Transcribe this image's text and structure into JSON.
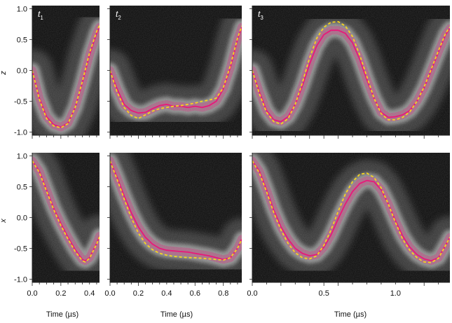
{
  "figure": {
    "xlabel": "Time (µs)",
    "row_labels": [
      "z",
      "x"
    ]
  },
  "chart_data": [
    {
      "id": "z-t1",
      "type": "line",
      "panel_label": "t",
      "panel_sub": "1",
      "ylabel": "z",
      "xlim": [
        0,
        0.47
      ],
      "ylim": [
        -1.05,
        1.05
      ],
      "yticks": [
        "1.0",
        "0.5",
        "0.0",
        "-0.5",
        "-1.0"
      ],
      "ytick_values": [
        1.0,
        0.5,
        0.0,
        -0.5,
        -1.0
      ],
      "xticks": [],
      "xtick_values": [],
      "series": [
        {
          "name": "",
          "role": "measured",
          "color": "#e8197a",
          "x": [
            0,
            0.05,
            0.1,
            0.15,
            0.2,
            0.25,
            0.3,
            0.35,
            0.4,
            0.45,
            0.47
          ],
          "y": [
            0.0,
            -0.45,
            -0.75,
            -0.88,
            -0.92,
            -0.85,
            -0.6,
            -0.2,
            0.25,
            0.6,
            0.7
          ]
        },
        {
          "name": "",
          "role": "predicted",
          "color": "#f5d51f",
          "x": [
            0,
            0.05,
            0.1,
            0.15,
            0.2,
            0.25,
            0.3,
            0.35,
            0.4,
            0.45,
            0.47
          ],
          "y": [
            0.0,
            -0.47,
            -0.78,
            -0.9,
            -0.93,
            -0.86,
            -0.6,
            -0.18,
            0.28,
            0.63,
            0.73
          ]
        }
      ]
    },
    {
      "id": "z-t2",
      "type": "line",
      "panel_label": "t",
      "panel_sub": "2",
      "ylabel": "",
      "xlim": [
        0,
        0.93
      ],
      "ylim": [
        -1.05,
        1.05
      ],
      "yticks": [],
      "ytick_values": [],
      "xticks": [],
      "xtick_values": [],
      "series": [
        {
          "name": "",
          "role": "measured",
          "color": "#e8197a",
          "x": [
            0,
            0.05,
            0.1,
            0.15,
            0.2,
            0.25,
            0.3,
            0.35,
            0.4,
            0.45,
            0.5,
            0.55,
            0.6,
            0.65,
            0.7,
            0.75,
            0.8,
            0.85,
            0.9,
            0.93
          ],
          "y": [
            0.0,
            -0.3,
            -0.55,
            -0.65,
            -0.69,
            -0.68,
            -0.62,
            -0.57,
            -0.55,
            -0.58,
            -0.58,
            -0.6,
            -0.58,
            -0.6,
            -0.57,
            -0.5,
            -0.3,
            0.05,
            0.5,
            0.7
          ]
        },
        {
          "name": "",
          "role": "predicted",
          "color": "#f5d51f",
          "x": [
            0,
            0.05,
            0.1,
            0.15,
            0.2,
            0.25,
            0.3,
            0.35,
            0.4,
            0.45,
            0.5,
            0.55,
            0.6,
            0.65,
            0.7,
            0.75,
            0.8,
            0.85,
            0.9,
            0.93
          ],
          "y": [
            0.0,
            -0.35,
            -0.6,
            -0.73,
            -0.78,
            -0.72,
            -0.66,
            -0.62,
            -0.6,
            -0.58,
            -0.57,
            -0.55,
            -0.53,
            -0.5,
            -0.48,
            -0.45,
            -0.28,
            0.08,
            0.52,
            0.72
          ]
        }
      ]
    },
    {
      "id": "z-t3",
      "type": "line",
      "panel_label": "t",
      "panel_sub": "3",
      "ylabel": "",
      "xlim": [
        0,
        1.38
      ],
      "ylim": [
        -1.05,
        1.05
      ],
      "yticks": [],
      "ytick_values": [],
      "xticks": [],
      "xtick_values": [],
      "series": [
        {
          "name": "",
          "role": "measured",
          "color": "#e8197a",
          "x": [
            0,
            0.05,
            0.1,
            0.15,
            0.2,
            0.25,
            0.3,
            0.35,
            0.4,
            0.45,
            0.5,
            0.55,
            0.6,
            0.65,
            0.7,
            0.75,
            0.8,
            0.85,
            0.9,
            0.95,
            1.0,
            1.05,
            1.1,
            1.15,
            1.2,
            1.25,
            1.3,
            1.35,
            1.38
          ],
          "y": [
            0.0,
            -0.35,
            -0.65,
            -0.8,
            -0.83,
            -0.75,
            -0.55,
            -0.25,
            0.1,
            0.4,
            0.58,
            0.65,
            0.65,
            0.6,
            0.45,
            0.18,
            -0.15,
            -0.45,
            -0.68,
            -0.76,
            -0.75,
            -0.72,
            -0.65,
            -0.5,
            -0.28,
            0.0,
            0.3,
            0.58,
            0.68
          ]
        },
        {
          "name": "",
          "role": "predicted",
          "color": "#f5d51f",
          "x": [
            0,
            0.05,
            0.1,
            0.15,
            0.2,
            0.25,
            0.3,
            0.35,
            0.4,
            0.45,
            0.5,
            0.55,
            0.6,
            0.65,
            0.7,
            0.75,
            0.8,
            0.85,
            0.9,
            0.95,
            1.0,
            1.05,
            1.1,
            1.15,
            1.2,
            1.25,
            1.3,
            1.35,
            1.38
          ],
          "y": [
            0.0,
            -0.38,
            -0.68,
            -0.83,
            -0.87,
            -0.78,
            -0.55,
            -0.2,
            0.2,
            0.52,
            0.7,
            0.78,
            0.79,
            0.72,
            0.55,
            0.25,
            -0.1,
            -0.45,
            -0.7,
            -0.8,
            -0.8,
            -0.76,
            -0.67,
            -0.5,
            -0.27,
            0.02,
            0.32,
            0.6,
            0.7
          ]
        }
      ]
    },
    {
      "id": "x-t1",
      "type": "line",
      "panel_label": "",
      "panel_sub": "",
      "ylabel": "x",
      "xlim": [
        0,
        0.47
      ],
      "ylim": [
        -1.05,
        1.05
      ],
      "yticks": [
        "1.0",
        "0.5",
        "0.0",
        "-0.5",
        "-1.0"
      ],
      "ytick_values": [
        1.0,
        0.5,
        0.0,
        -0.5,
        -1.0
      ],
      "xticks": [
        "0.0",
        "0.2",
        "0.4"
      ],
      "xtick_values": [
        0.0,
        0.2,
        0.4
      ],
      "series": [
        {
          "name": "",
          "role": "measured",
          "color": "#e8197a",
          "x": [
            0,
            0.05,
            0.1,
            0.15,
            0.2,
            0.25,
            0.3,
            0.35,
            0.37,
            0.4,
            0.45,
            0.47
          ],
          "y": [
            0.92,
            0.75,
            0.45,
            0.15,
            -0.1,
            -0.32,
            -0.52,
            -0.68,
            -0.7,
            -0.65,
            -0.42,
            -0.3
          ]
        },
        {
          "name": "",
          "role": "predicted",
          "color": "#f5d51f",
          "x": [
            0,
            0.05,
            0.1,
            0.15,
            0.2,
            0.25,
            0.3,
            0.35,
            0.37,
            0.4,
            0.45,
            0.47
          ],
          "y": [
            0.92,
            0.73,
            0.43,
            0.13,
            -0.13,
            -0.35,
            -0.55,
            -0.7,
            -0.72,
            -0.66,
            -0.43,
            -0.31
          ]
        }
      ]
    },
    {
      "id": "x-t2",
      "type": "line",
      "panel_label": "",
      "panel_sub": "",
      "ylabel": "",
      "xlim": [
        0,
        0.93
      ],
      "ylim": [
        -1.05,
        1.05
      ],
      "yticks": [],
      "ytick_values": [],
      "xticks": [
        "0.0",
        "0.2",
        "0.4",
        "0.6",
        "0.8"
      ],
      "xtick_values": [
        0.0,
        0.2,
        0.4,
        0.6,
        0.8
      ],
      "series": [
        {
          "name": "",
          "role": "measured",
          "color": "#e8197a",
          "x": [
            0,
            0.05,
            0.1,
            0.15,
            0.2,
            0.25,
            0.3,
            0.35,
            0.4,
            0.45,
            0.5,
            0.55,
            0.6,
            0.65,
            0.7,
            0.75,
            0.8,
            0.85,
            0.9,
            0.93
          ],
          "y": [
            0.92,
            0.65,
            0.35,
            0.08,
            -0.15,
            -0.32,
            -0.43,
            -0.5,
            -0.53,
            -0.54,
            -0.55,
            -0.56,
            -0.58,
            -0.6,
            -0.62,
            -0.65,
            -0.68,
            -0.65,
            -0.5,
            -0.35
          ]
        },
        {
          "name": "",
          "role": "predicted",
          "color": "#f5d51f",
          "x": [
            0,
            0.05,
            0.1,
            0.15,
            0.2,
            0.25,
            0.3,
            0.35,
            0.4,
            0.45,
            0.5,
            0.55,
            0.6,
            0.65,
            0.7,
            0.75,
            0.8,
            0.85,
            0.9,
            0.93
          ],
          "y": [
            0.92,
            0.62,
            0.3,
            0.0,
            -0.25,
            -0.42,
            -0.52,
            -0.58,
            -0.61,
            -0.63,
            -0.64,
            -0.65,
            -0.65,
            -0.66,
            -0.67,
            -0.68,
            -0.69,
            -0.65,
            -0.5,
            -0.35
          ]
        }
      ]
    },
    {
      "id": "x-t3",
      "type": "line",
      "panel_label": "",
      "panel_sub": "",
      "ylabel": "",
      "xlim": [
        0,
        1.38
      ],
      "ylim": [
        -1.05,
        1.05
      ],
      "yticks": [],
      "ytick_values": [],
      "xticks": [
        "0.0",
        "0.5",
        "1.0"
      ],
      "xtick_values": [
        0.0,
        0.5,
        1.0
      ],
      "series": [
        {
          "name": "",
          "role": "measured",
          "color": "#e8197a",
          "x": [
            0,
            0.05,
            0.1,
            0.15,
            0.2,
            0.25,
            0.3,
            0.35,
            0.4,
            0.45,
            0.5,
            0.55,
            0.6,
            0.65,
            0.7,
            0.75,
            0.8,
            0.85,
            0.9,
            0.95,
            1.0,
            1.05,
            1.1,
            1.15,
            1.2,
            1.25,
            1.3,
            1.35,
            1.38
          ],
          "y": [
            0.92,
            0.75,
            0.45,
            0.12,
            -0.15,
            -0.35,
            -0.5,
            -0.58,
            -0.62,
            -0.6,
            -0.48,
            -0.28,
            -0.02,
            0.22,
            0.42,
            0.55,
            0.6,
            0.58,
            0.45,
            0.22,
            -0.05,
            -0.3,
            -0.48,
            -0.6,
            -0.67,
            -0.7,
            -0.65,
            -0.45,
            -0.32
          ]
        },
        {
          "name": "",
          "role": "predicted",
          "color": "#f5d51f",
          "x": [
            0,
            0.05,
            0.1,
            0.15,
            0.2,
            0.25,
            0.3,
            0.35,
            0.4,
            0.45,
            0.5,
            0.55,
            0.6,
            0.65,
            0.7,
            0.75,
            0.8,
            0.85,
            0.9,
            0.95,
            1.0,
            1.05,
            1.1,
            1.15,
            1.2,
            1.25,
            1.3,
            1.35,
            1.38
          ],
          "y": [
            0.92,
            0.72,
            0.42,
            0.08,
            -0.2,
            -0.42,
            -0.57,
            -0.65,
            -0.67,
            -0.62,
            -0.45,
            -0.2,
            0.1,
            0.38,
            0.58,
            0.7,
            0.72,
            0.65,
            0.48,
            0.22,
            -0.08,
            -0.35,
            -0.53,
            -0.65,
            -0.72,
            -0.73,
            -0.66,
            -0.45,
            -0.32
          ]
        }
      ]
    }
  ]
}
